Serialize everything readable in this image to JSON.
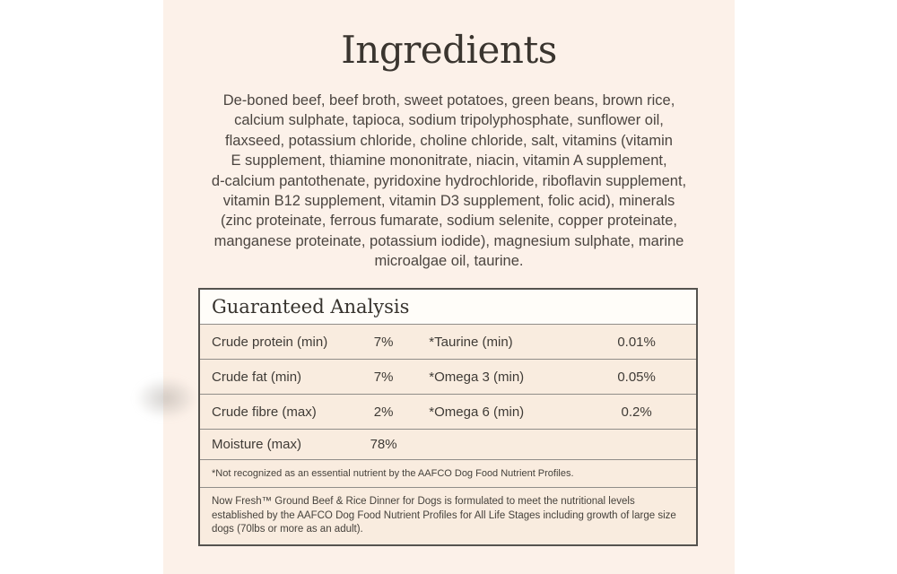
{
  "title": "Ingredients",
  "ingredients": {
    "lines": [
      "De-boned beef, beef broth, sweet potatoes, green beans, brown rice,",
      "calcium sulphate, tapioca, sodium tripolyphosphate, sunflower oil,",
      "flaxseed, potassium chloride, choline chloride, salt, vitamins (vitamin",
      "E supplement, thiamine mononitrate, niacin, vitamin A supplement,",
      "d-calcium pantothenate, pyridoxine hydrochloride, riboflavin supplement,",
      "vitamin B12 supplement, vitamin D3 supplement, folic acid), minerals",
      "(zinc proteinate, ferrous fumarate, sodium selenite, copper proteinate,",
      "manganese proteinate, potassium iodide), magnesium sulphate, marine",
      "microalgae oil, taurine."
    ]
  },
  "analysis": {
    "heading": "Guaranteed Analysis",
    "rows": [
      {
        "label1": "Crude protein (min)",
        "value1": "7%",
        "label2": "*Taurine (min)",
        "value2": "0.01%"
      },
      {
        "label1": "Crude fat (min)",
        "value1": "7%",
        "label2": "*Omega 3 (min)",
        "value2": "0.05%"
      },
      {
        "label1": "Crude fibre (max)",
        "value1": "2%",
        "label2": "*Omega 6 (min)",
        "value2": "0.2%"
      },
      {
        "label1": "Moisture (max)",
        "value1": "78%",
        "label2": "",
        "value2": ""
      }
    ],
    "footnote": "*Not recognized as an essential nutrient by the AAFCO Dog Food Nutrient Profiles.",
    "note": "Now Fresh™ Ground Beef & Rice Dinner for Dogs is formulated to meet the nutritional levels established by the AAFCO Dog Food Nutrient Profiles for All Life Stages including growth of large size dogs (70lbs or more as an adult)."
  },
  "colors": {
    "label_background": "#fcf1e9",
    "table_row_background": "#f9ecdf",
    "table_header_background": "#fffdf9",
    "table_border": "#55534f",
    "text": "#3f3b36"
  }
}
